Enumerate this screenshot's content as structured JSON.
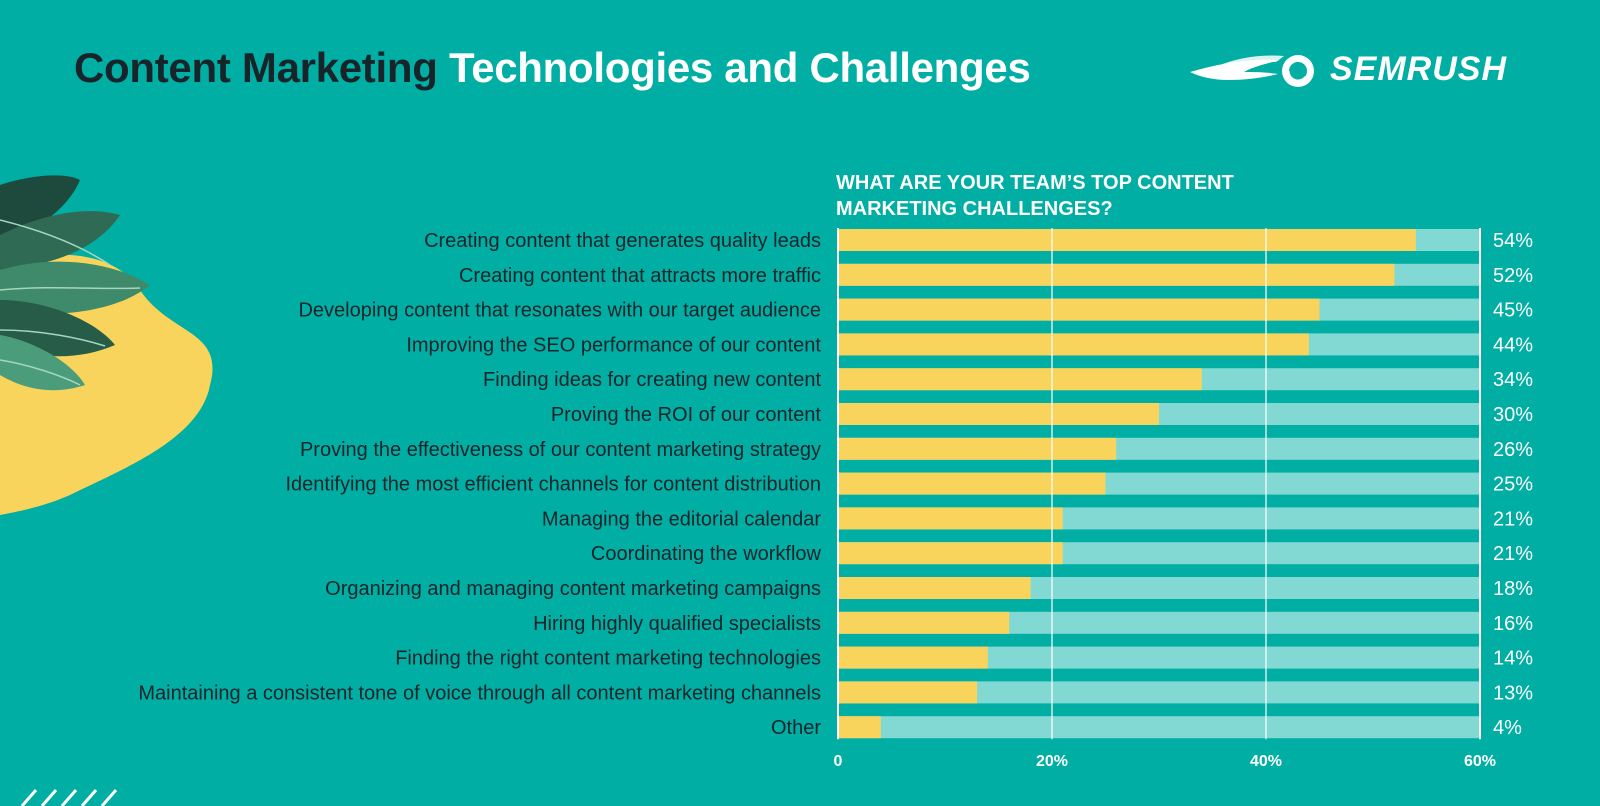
{
  "header": {
    "title_dark": "Content Marketing",
    "title_light": "Technologies and Challenges"
  },
  "logo": {
    "text": "SEMRUSH",
    "icon": "semrush-fireball-icon"
  },
  "decoration": {
    "icon": "leaves-illustration-icon"
  },
  "chart_data": {
    "type": "bar",
    "orientation": "horizontal",
    "title": "WHAT ARE YOUR TEAM’S TOP CONTENT MARKETING CHALLENGES?",
    "categories": [
      "Creating content that generates quality leads",
      "Creating content that attracts more traffic",
      "Developing content that resonates with our target audience",
      "Improving the SEO performance of our content",
      "Finding ideas for creating new content",
      "Proving the ROI of our content",
      "Proving the effectiveness of our content marketing strategy",
      "Identifying the most efficient channels for content distribution",
      "Managing the editorial calendar",
      "Coordinating the workflow",
      "Organizing and managing content marketing campaigns",
      "Hiring highly qualified specialists",
      "Finding the right content marketing technologies",
      "Maintaining a consistent tone of voice through all content marketing channels",
      "Other"
    ],
    "values": [
      54,
      52,
      45,
      44,
      34,
      30,
      26,
      25,
      21,
      21,
      18,
      16,
      14,
      13,
      4
    ],
    "value_labels": [
      "54%",
      "52%",
      "45%",
      "44%",
      "34%",
      "30%",
      "26%",
      "25%",
      "21%",
      "21%",
      "18%",
      "16%",
      "14%",
      "13%",
      "4%"
    ],
    "xlim": [
      0,
      60
    ],
    "xticks": [
      0,
      20,
      40,
      60
    ],
    "xtick_labels": [
      "0",
      "20%",
      "40%",
      "60%"
    ],
    "grid": true,
    "colors": {
      "bar": "#F8D45C",
      "track": "#82D9D4",
      "grid": "#FFFFFF",
      "text": "#17252B",
      "value_text": "#FFFFFF",
      "background": "#00AEA4"
    }
  }
}
